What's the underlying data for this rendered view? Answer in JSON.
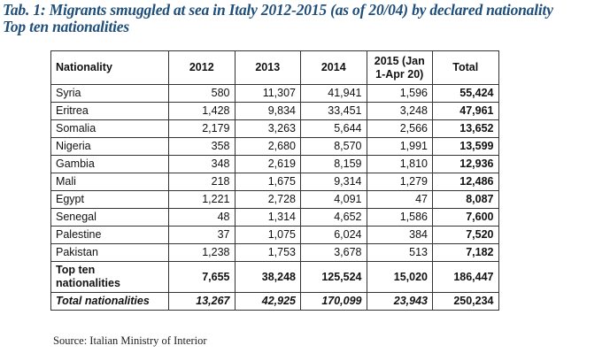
{
  "title": {
    "line1": "Tab. 1: Migrants smuggled at sea in Italy 2012-2015 (as of 20/04) by declared nationality",
    "line2": "Top ten nationalities"
  },
  "table": {
    "headers": [
      "Nationality",
      "2012",
      "2013",
      "2014",
      "2015 (Jan 1-Apr 20)",
      "Total"
    ],
    "header_2015_line1": "2015 (Jan",
    "header_2015_line2": "1-Apr 20)",
    "rows": [
      {
        "nationality": "Syria",
        "y2012": "580",
        "y2013": "11,307",
        "y2014": "41,941",
        "y2015": "1,596",
        "total": "55,424"
      },
      {
        "nationality": "Eritrea",
        "y2012": "1,428",
        "y2013": "9,834",
        "y2014": "33,451",
        "y2015": "3,248",
        "total": "47,961"
      },
      {
        "nationality": "Somalia",
        "y2012": "2,179",
        "y2013": "3,263",
        "y2014": "5,644",
        "y2015": "2,566",
        "total": "13,652"
      },
      {
        "nationality": "Nigeria",
        "y2012": "358",
        "y2013": "2,680",
        "y2014": "8,570",
        "y2015": "1,991",
        "total": "13,599"
      },
      {
        "nationality": "Gambia",
        "y2012": "348",
        "y2013": "2,619",
        "y2014": "8,159",
        "y2015": "1,810",
        "total": "12,936"
      },
      {
        "nationality": "Mali",
        "y2012": "218",
        "y2013": "1,675",
        "y2014": "9,314",
        "y2015": "1,279",
        "total": "12,486"
      },
      {
        "nationality": "Egypt",
        "y2012": "1,221",
        "y2013": "2,728",
        "y2014": "4,091",
        "y2015": "47",
        "total": "8,087"
      },
      {
        "nationality": "Senegal",
        "y2012": "48",
        "y2013": "1,314",
        "y2014": "4,652",
        "y2015": "1,586",
        "total": "7,600"
      },
      {
        "nationality": "Palestine",
        "y2012": "37",
        "y2013": "1,075",
        "y2014": "6,024",
        "y2015": "384",
        "total": "7,520"
      },
      {
        "nationality": "Pakistan",
        "y2012": "1,238",
        "y2013": "1,753",
        "y2014": "3,678",
        "y2015": "513",
        "total": "7,182"
      }
    ],
    "top_ten": {
      "label_line1": "Top ten",
      "label_line2": "nationalities",
      "y2012": "7,655",
      "y2013": "38,248",
      "y2014": "125,524",
      "y2015": "15,020",
      "total": "186,447"
    },
    "total_nationalities": {
      "label": "Total nationalities",
      "y2012": "13,267",
      "y2013": "42,925",
      "y2014": "170,099",
      "y2015": "23,943",
      "total": "250,234"
    }
  },
  "source": "Source: Italian Ministry of Interior",
  "colors": {
    "title": "#1f4e79",
    "border": "#333333",
    "text": "#111111"
  }
}
